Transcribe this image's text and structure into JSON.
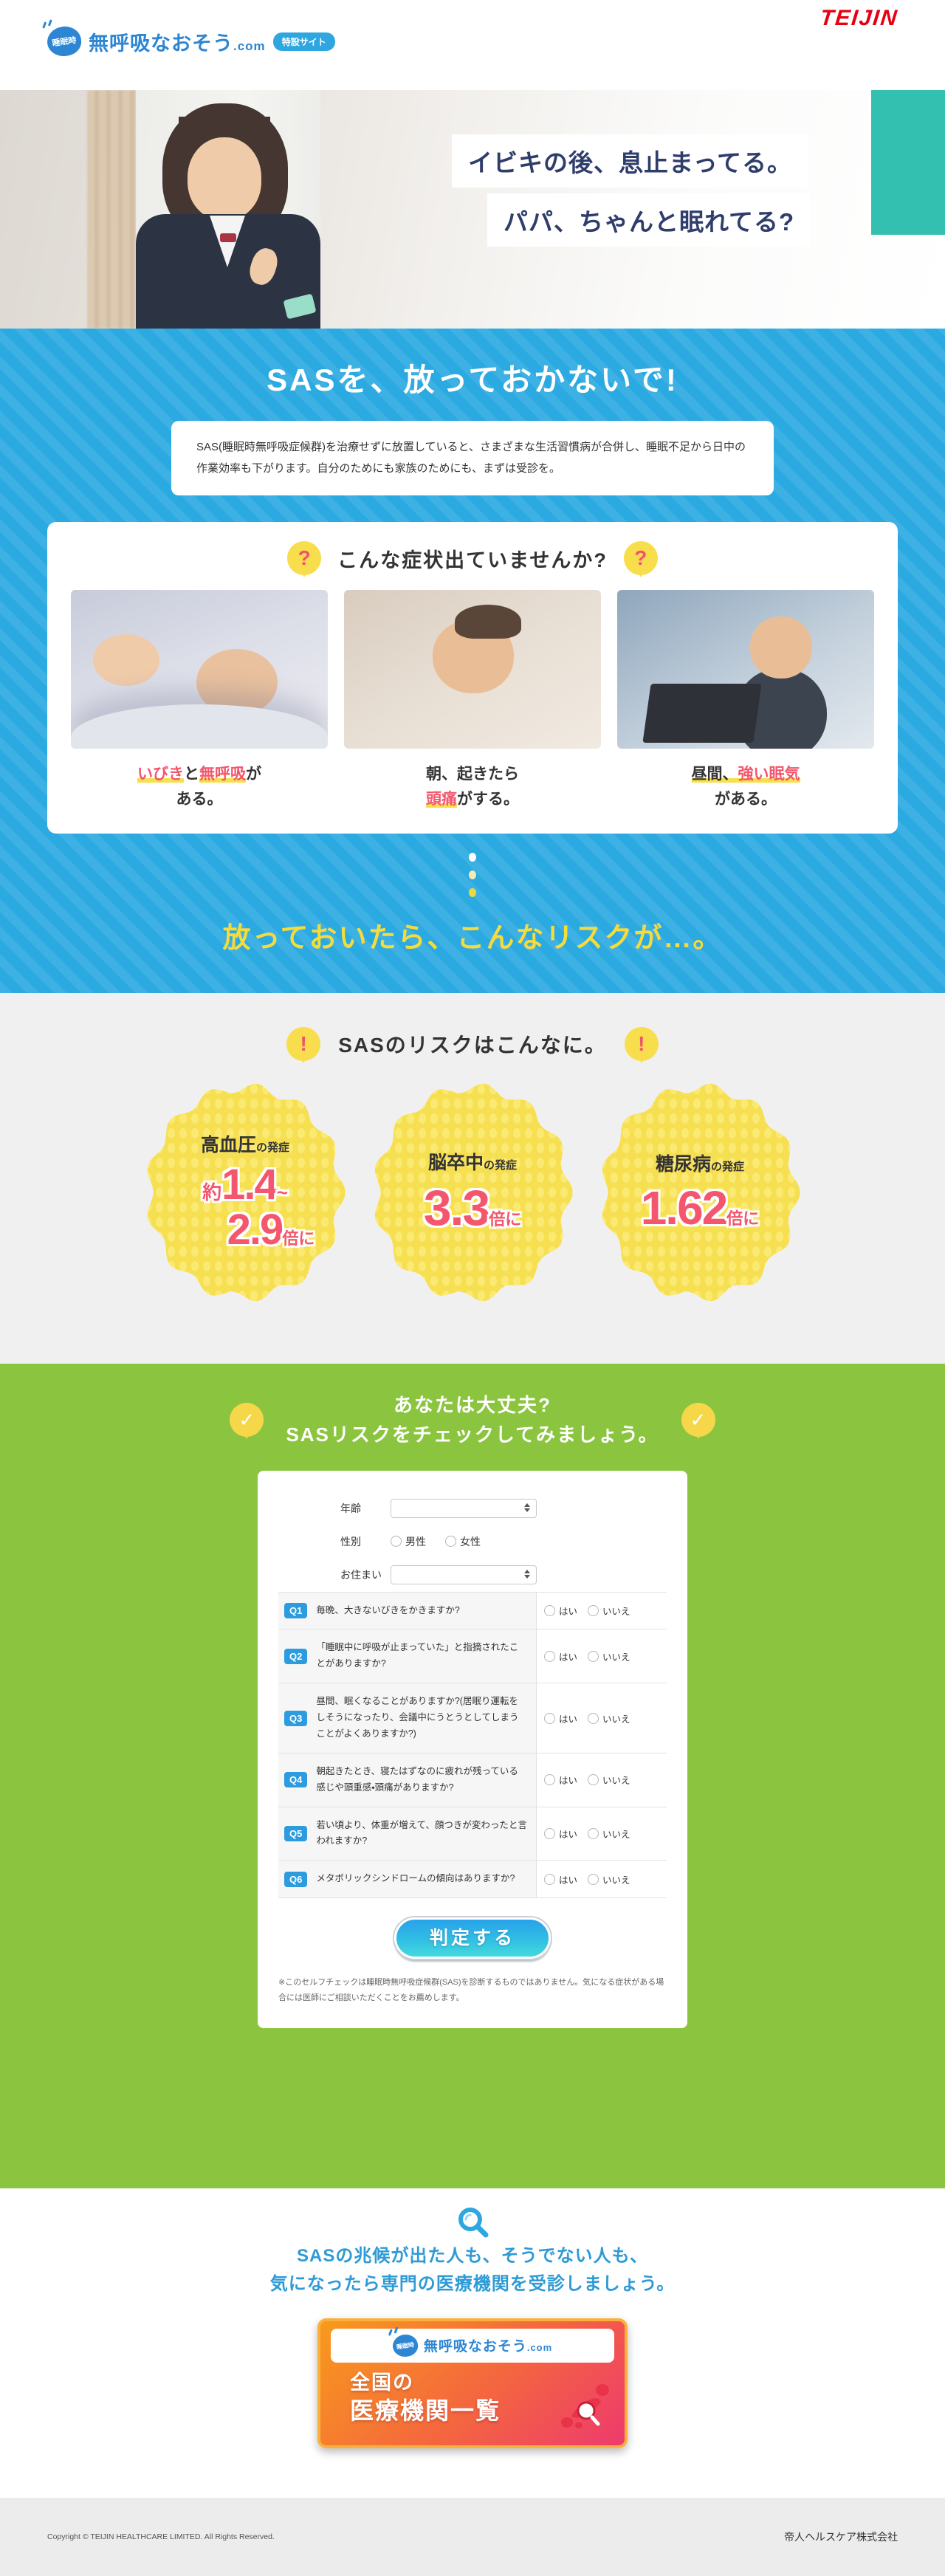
{
  "colors": {
    "blue": "#2BA9E1",
    "green": "#8BC53F",
    "yellow": "#F7DF52",
    "red_accent": "#F3566C",
    "navy": "#2F3D6B",
    "brand_red": "#E60012"
  },
  "symbols": {
    "question": "?",
    "exclaim": "!",
    "check": "✓"
  },
  "header": {
    "logo": {
      "bubble": "睡眠時",
      "title": "無呼吸なおそう",
      "domain": ".com",
      "badge": "特設サイト"
    },
    "brand": "TEIJIN"
  },
  "hero": {
    "line1": "イビキの後、息止まってる。",
    "line2": "パパ、ちゃんと眠れてる?"
  },
  "intro": {
    "heading": "SASを、放っておかないで!",
    "body": "SAS(睡眠時無呼吸症候群)を治療せずに放置していると、さまざまな生活習慣病が合併し、睡眠不足から日中の作業効率も下がります。自分のためにも家族のためにも、まずは受診を。"
  },
  "symptoms": {
    "heading": "こんな症状出ていませんか?",
    "items": [
      {
        "a": "いびき",
        "b": "と",
        "c": "無呼吸",
        "d": "が",
        "e": "ある。"
      },
      {
        "a": "朝、起きたら",
        "b": "頭痛",
        "c": "がする。"
      },
      {
        "a": "昼間、",
        "b": "強い眠気",
        "c": "がある。"
      }
    ]
  },
  "risks": {
    "transition": "放っておいたら、こんなリスクが…。",
    "heading": "SASのリスクはこんなに。",
    "badges": [
      {
        "title": "高血圧",
        "sub": "の発症",
        "approx": "約",
        "n1": "1.4",
        "tilde": "~",
        "n2": "2.9",
        "unit": "倍に"
      },
      {
        "title": "脳卒中",
        "sub": "の発症",
        "n1": "3.3",
        "unit": "倍に"
      },
      {
        "title": "糖尿病",
        "sub": "の発症",
        "n1": "1.62",
        "unit": "倍に"
      }
    ]
  },
  "check": {
    "heading1": "あなたは大丈夫?",
    "heading2": "SASリスクをチェックしてみましょう。",
    "age_label": "年齢",
    "gender_label": "性別",
    "male": "男性",
    "female": "女性",
    "residence_label": "お住まい",
    "yes": "はい",
    "no": "いいえ",
    "questions": [
      {
        "no": "Q1",
        "text": "毎晩、大きないびきをかきますか?"
      },
      {
        "no": "Q2",
        "text": "「睡眠中に呼吸が止まっていた」と指摘されたことがありますか?"
      },
      {
        "no": "Q3",
        "text": "昼間、眠くなることがありますか?(居眠り運転をしそうになったり、会議中にうとうとしてしまうことがよくありますか?)"
      },
      {
        "no": "Q4",
        "text": "朝起きたとき、寝たはずなのに疲れが残っている感じや頭重感・頭痛がありますか?"
      },
      {
        "no": "Q5",
        "text": "若い頃より、体重が増えて、顔つきが変わったと言われますか?"
      },
      {
        "no": "Q6",
        "text": "メタボリックシンドロームの傾向はありますか?"
      }
    ],
    "submit": "判定する",
    "disclaimer": "※このセルフチェックは睡眠時無呼吸症候群(SAS)を診断するものではありません。気になる症状がある場合には医師にご相談いただくことをお薦めします。"
  },
  "cta": {
    "line1": "SASの兆候が出た人も、そうでない人も、",
    "line2": "気になったら専門の医療機関を受診しましょう。",
    "button": {
      "logo_bubble": "睡眠時",
      "logo_title": "無呼吸なおそう",
      "logo_domain": ".com",
      "big1": "全国の",
      "big2": "医療機関一覧"
    }
  },
  "footer": {
    "copyright": "Copyright © TEIJIN HEALTHCARE LIMITED. All Rights Reserved.",
    "company": "帝人ヘルスケア株式会社"
  }
}
